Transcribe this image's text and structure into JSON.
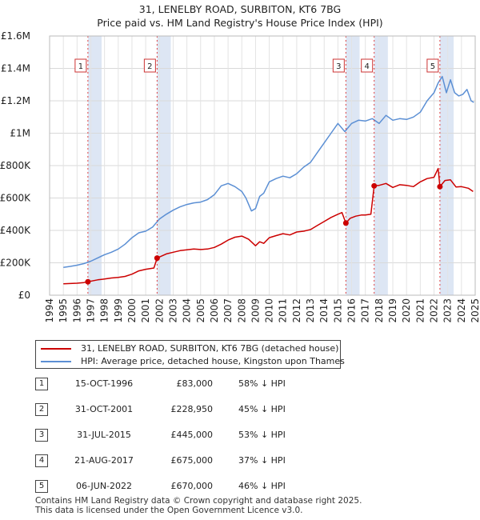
{
  "chart_data": {
    "type": "line",
    "title": "31, LENELBY ROAD, SURBITON, KT6 7BG",
    "subtitle": "Price paid vs. HM Land Registry's House Price Index (HPI)",
    "xlim": [
      1994,
      2025
    ],
    "ylim": [
      0,
      1600000
    ],
    "yticks": [
      {
        "value": 0,
        "label": "£0"
      },
      {
        "value": 200000,
        "label": "£200K"
      },
      {
        "value": 400000,
        "label": "£400K"
      },
      {
        "value": 600000,
        "label": "£600K"
      },
      {
        "value": 800000,
        "label": "£800K"
      },
      {
        "value": 1000000,
        "label": "£1M"
      },
      {
        "value": 1200000,
        "label": "£1.2M"
      },
      {
        "value": 1400000,
        "label": "£1.4M"
      },
      {
        "value": 1600000,
        "label": "£1.6M"
      }
    ],
    "xticks": [
      "1994",
      "1995",
      "1996",
      "1997",
      "1998",
      "1999",
      "2000",
      "2001",
      "2002",
      "2003",
      "2004",
      "2005",
      "2006",
      "2007",
      "2008",
      "2009",
      "2010",
      "2011",
      "2012",
      "2013",
      "2014",
      "2015",
      "2016",
      "2017",
      "2018",
      "2019",
      "2020",
      "2021",
      "2022",
      "2023",
      "2024",
      "2025"
    ],
    "grid": true,
    "legend_position": "below",
    "series": [
      {
        "name": "31, LENELBY ROAD, SURBITON, KT6 7BG (detached house)",
        "color": "#cc0000",
        "x": [
          1995.0,
          1995.5,
          1996.0,
          1996.5,
          1996.79,
          1997.5,
          1998.0,
          1998.5,
          1999.0,
          1999.5,
          2000.0,
          2000.5,
          2001.0,
          2001.6,
          2001.83,
          2002.5,
          2003.0,
          2003.5,
          2004.0,
          2004.5,
          2005.0,
          2005.5,
          2006.0,
          2006.5,
          2007.0,
          2007.5,
          2008.0,
          2008.5,
          2009.0,
          2009.3,
          2009.6,
          2010.0,
          2010.5,
          2011.0,
          2011.5,
          2012.0,
          2012.5,
          2013.0,
          2013.5,
          2014.0,
          2014.5,
          2015.0,
          2015.3,
          2015.58,
          2015.9,
          2016.3,
          2016.7,
          2017.0,
          2017.4,
          2017.64,
          2018.0,
          2018.5,
          2019.0,
          2019.5,
          2020.0,
          2020.5,
          2021.0,
          2021.5,
          2022.0,
          2022.3,
          2022.43,
          2022.8,
          2023.2,
          2023.6,
          2024.0,
          2024.5,
          2024.85
        ],
        "values": [
          70000,
          72000,
          74000,
          78000,
          83000,
          95000,
          100000,
          106000,
          110000,
          116000,
          130000,
          150000,
          160000,
          168000,
          228950,
          255000,
          265000,
          275000,
          280000,
          285000,
          282000,
          285000,
          295000,
          315000,
          340000,
          358000,
          365000,
          345000,
          305000,
          330000,
          320000,
          355000,
          368000,
          380000,
          372000,
          390000,
          395000,
          405000,
          430000,
          455000,
          480000,
          500000,
          510000,
          445000,
          475000,
          488000,
          495000,
          495000,
          500000,
          675000,
          678000,
          690000,
          665000,
          682000,
          678000,
          670000,
          700000,
          720000,
          728000,
          782000,
          670000,
          708000,
          712000,
          668000,
          670000,
          660000,
          640000
        ]
      },
      {
        "name": "HPI: Average price, detached house, Kingston upon Thames",
        "color": "#5b8fd4",
        "x": [
          1995.0,
          1995.5,
          1996.0,
          1996.5,
          1997.0,
          1997.5,
          1998.0,
          1998.5,
          1999.0,
          1999.5,
          2000.0,
          2000.5,
          2001.0,
          2001.5,
          2002.0,
          2002.5,
          2003.0,
          2003.5,
          2004.0,
          2004.5,
          2005.0,
          2005.5,
          2006.0,
          2006.5,
          2007.0,
          2007.5,
          2008.0,
          2008.3,
          2008.7,
          2009.0,
          2009.3,
          2009.6,
          2010.0,
          2010.5,
          2011.0,
          2011.5,
          2012.0,
          2012.5,
          2013.0,
          2013.5,
          2014.0,
          2014.5,
          2015.0,
          2015.5,
          2016.0,
          2016.5,
          2017.0,
          2017.5,
          2018.0,
          2018.5,
          2019.0,
          2019.5,
          2020.0,
          2020.5,
          2021.0,
          2021.5,
          2022.0,
          2022.3,
          2022.6,
          2022.9,
          2023.2,
          2023.5,
          2023.8,
          2024.1,
          2024.4,
          2024.7,
          2024.9
        ],
        "values": [
          172000,
          178000,
          185000,
          195000,
          210000,
          230000,
          250000,
          265000,
          285000,
          315000,
          355000,
          385000,
          395000,
          420000,
          470000,
          500000,
          525000,
          545000,
          560000,
          570000,
          575000,
          590000,
          620000,
          675000,
          690000,
          670000,
          640000,
          600000,
          520000,
          535000,
          610000,
          630000,
          700000,
          720000,
          735000,
          725000,
          750000,
          790000,
          820000,
          880000,
          940000,
          1000000,
          1060000,
          1010000,
          1060000,
          1080000,
          1075000,
          1090000,
          1060000,
          1110000,
          1080000,
          1090000,
          1085000,
          1100000,
          1130000,
          1200000,
          1250000,
          1310000,
          1350000,
          1250000,
          1330000,
          1250000,
          1230000,
          1240000,
          1270000,
          1200000,
          1190000
        ]
      }
    ],
    "sales": [
      {
        "id": "1",
        "date": "15-OCT-1996",
        "x": 1996.79,
        "price": 83000,
        "price_label": "£83,000",
        "hpi_label": "58% ↓ HPI"
      },
      {
        "id": "2",
        "date": "31-OCT-2001",
        "x": 2001.83,
        "price": 228950,
        "price_label": "£228,950",
        "hpi_label": "45% ↓ HPI"
      },
      {
        "id": "3",
        "date": "31-JUL-2015",
        "x": 2015.58,
        "price": 445000,
        "price_label": "£445,000",
        "hpi_label": "53% ↓ HPI"
      },
      {
        "id": "4",
        "date": "21-AUG-2017",
        "x": 2017.64,
        "price": 675000,
        "price_label": "£675,000",
        "hpi_label": "37% ↓ HPI"
      },
      {
        "id": "5",
        "date": "06-JUN-2022",
        "x": 2022.43,
        "price": 670000,
        "price_label": "£670,000",
        "hpi_label": "46% ↓ HPI"
      }
    ]
  },
  "colors": {
    "property": "#cc0000",
    "hpi": "#5b8fd4",
    "band": "#dde6f4",
    "marker_line": "#dd4444"
  },
  "footer": {
    "line1": "Contains HM Land Registry data © Crown copyright and database right 2025.",
    "line2": "This data is licensed under the Open Government Licence v3.0."
  }
}
